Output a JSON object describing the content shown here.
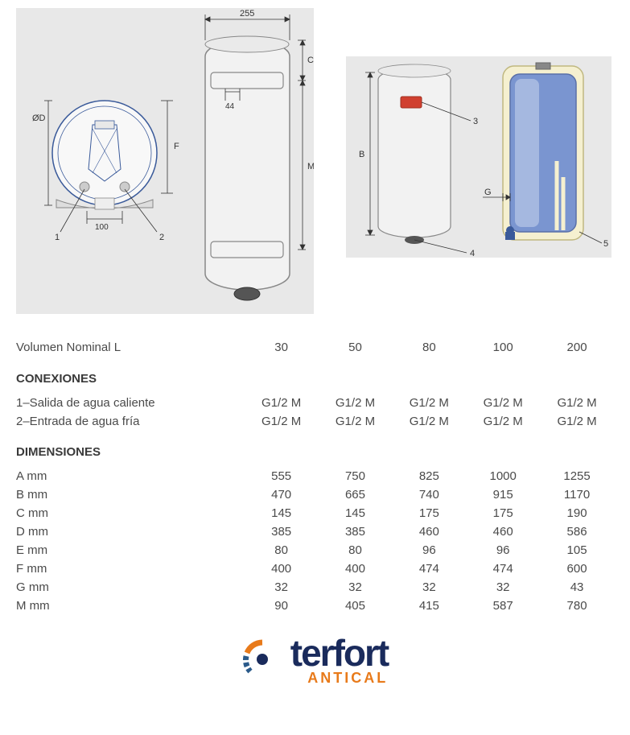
{
  "diagrams": {
    "left": {
      "dim_top": "255",
      "dim_44": "44",
      "dim_100": "100",
      "label_OD": "ØD",
      "label_F": "F",
      "label_C": "C",
      "label_M": "M",
      "callout_1": "1",
      "callout_2": "2",
      "bg_color": "#e8e8e8",
      "tank_fill": "#f2f2f2",
      "tank_stroke": "#888",
      "dim_line_color": "#333",
      "circle_line_color": "#3a5a9a"
    },
    "right": {
      "label_B": "B",
      "label_G": "G",
      "callout_3": "3",
      "callout_4": "4",
      "callout_5": "5",
      "bg_color": "#e8e8e8",
      "exterior_fill": "#f2f2f2",
      "cutaway_outer": "#f5f0d0",
      "cutaway_inner": "#7a95d0",
      "cutaway_inner_light": "#a5b8e0",
      "cutaway_border": "#5a70a8",
      "indicator_color": "#d04030"
    }
  },
  "table": {
    "vol_label": "Volumen Nominal L",
    "columns": [
      "30",
      "50",
      "80",
      "100",
      "200"
    ],
    "conexiones_header": "CONEXIONES",
    "conexiones": [
      {
        "label": "1–Salida de agua caliente",
        "values": [
          "G1/2 M",
          "G1/2 M",
          "G1/2 M",
          "G1/2 M",
          "G1/2 M"
        ]
      },
      {
        "label": "2–Entrada de agua fría",
        "values": [
          "G1/2 M",
          "G1/2 M",
          "G1/2 M",
          "G1/2 M",
          "G1/2 M"
        ]
      }
    ],
    "dimensiones_header": "DIMENSIONES",
    "dimensiones": [
      {
        "label": "A mm",
        "values": [
          "555",
          "750",
          "825",
          "1000",
          "1255"
        ]
      },
      {
        "label": "B mm",
        "values": [
          "470",
          "665",
          "740",
          "915",
          "1170"
        ]
      },
      {
        "label": "C mm",
        "values": [
          "145",
          "145",
          "175",
          "175",
          "190"
        ]
      },
      {
        "label": "D mm",
        "values": [
          "385",
          "385",
          "460",
          "460",
          "586"
        ]
      },
      {
        "label": "E mm",
        "values": [
          "80",
          "80",
          "96",
          "96",
          "105"
        ]
      },
      {
        "label": "F mm",
        "values": [
          "400",
          "400",
          "474",
          "474",
          "600"
        ]
      },
      {
        "label": "G mm",
        "values": [
          "32",
          "32",
          "32",
          "32",
          "43"
        ]
      },
      {
        "label": "M mm",
        "values": [
          "90",
          "405",
          "415",
          "587",
          "780"
        ]
      }
    ]
  },
  "logo": {
    "main": "terfort",
    "sub": "ANTICAL",
    "colors": {
      "text": "#1a2b5c",
      "accent": "#e87a1a",
      "arc_blue": "#2a5a8a"
    }
  }
}
